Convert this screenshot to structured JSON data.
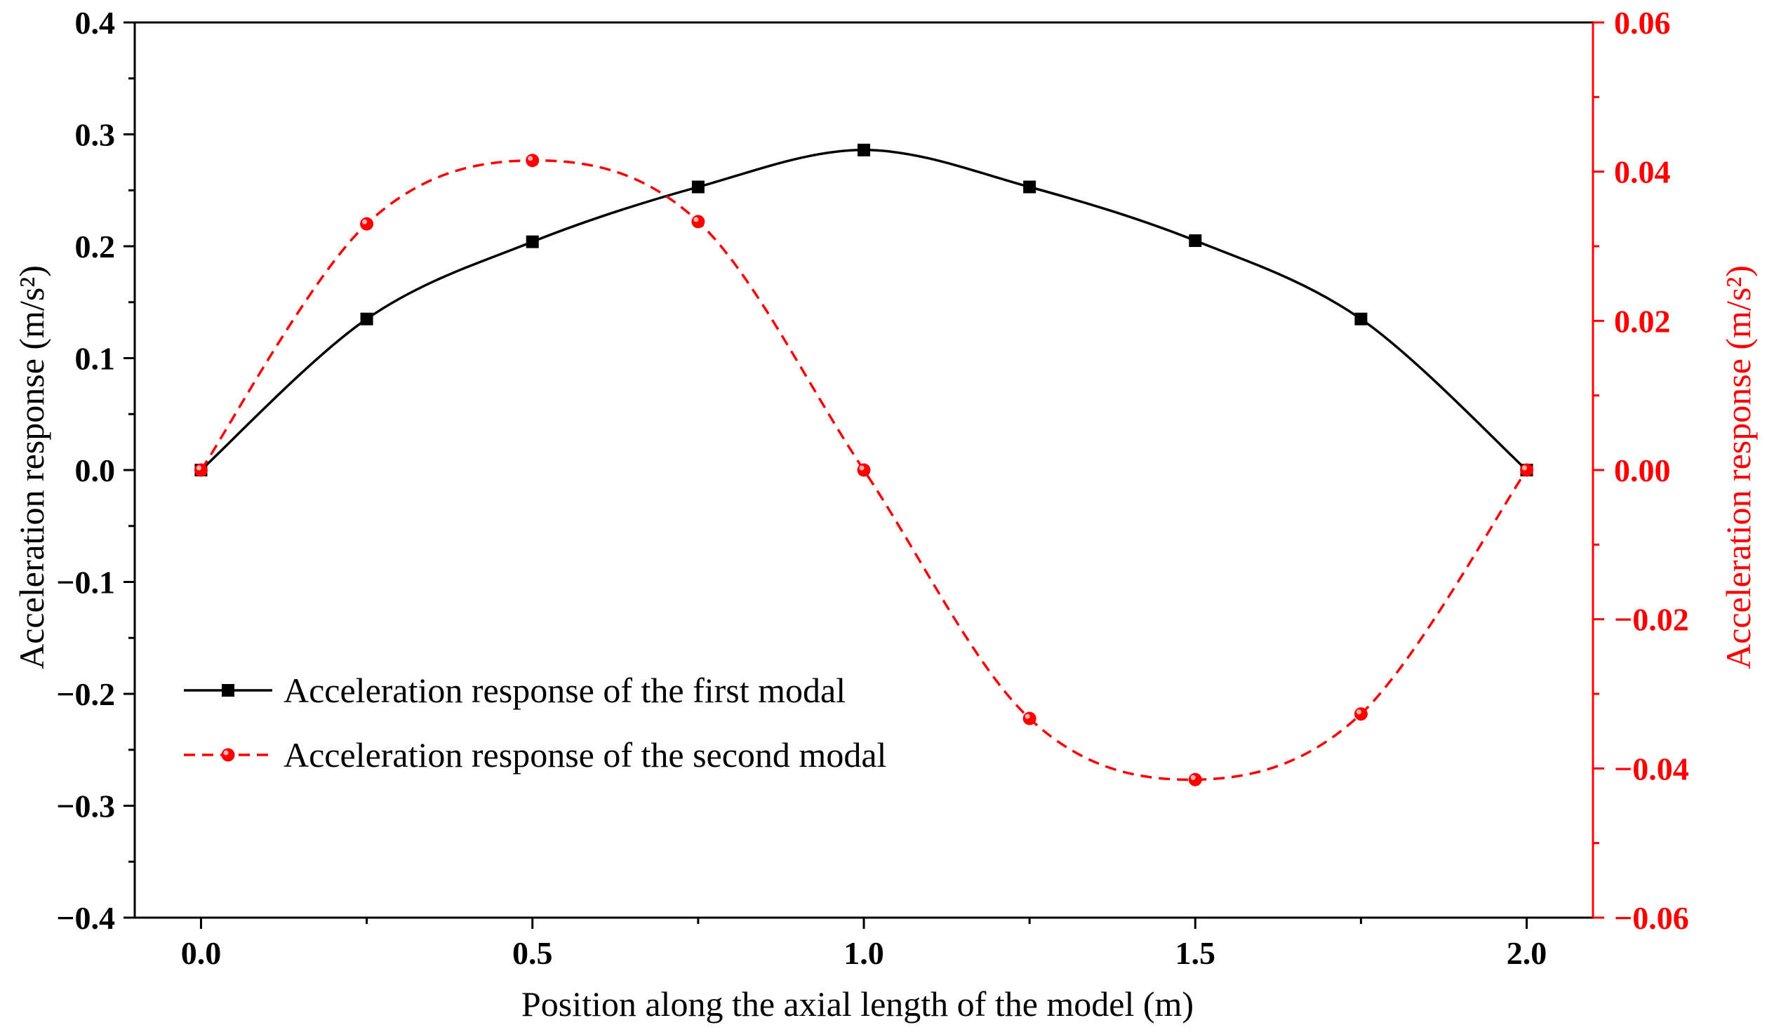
{
  "chart_data": {
    "type": "line",
    "title": "",
    "xlabel": "Position along the axial length of the model (m)",
    "ylabel_left": "Acceleration response (m/s²)",
    "ylabel_right": "Acceleration response (m/s²)",
    "x": [
      0.0,
      0.25,
      0.5,
      0.75,
      1.0,
      1.25,
      1.5,
      1.75,
      2.0
    ],
    "xlim": [
      -0.1,
      2.1
    ],
    "ylim_left": [
      -0.4,
      0.4
    ],
    "ylim_right": [
      -0.06,
      0.06
    ],
    "x_ticks": [
      0.0,
      0.5,
      1.0,
      1.5,
      2.0
    ],
    "x_tick_labels": [
      "0.0",
      "0.5",
      "1.0",
      "1.5",
      "2.0"
    ],
    "y_left_ticks": [
      0.4,
      0.3,
      0.2,
      0.1,
      0.0,
      -0.1,
      -0.2,
      -0.3,
      -0.4
    ],
    "y_left_tick_labels": [
      "0.4",
      "0.3",
      "0.2",
      "0.1",
      "0.0",
      "−0.1",
      "−0.2",
      "−0.3",
      "−0.4"
    ],
    "y_right_ticks": [
      0.06,
      0.04,
      0.02,
      0.0,
      -0.02,
      -0.04,
      -0.06
    ],
    "y_right_tick_labels": [
      "0.06",
      "0.04",
      "0.02",
      "0.00",
      "−0.02",
      "−0.04",
      "−0.06"
    ],
    "grid": false,
    "legend_position": "lower-left",
    "series": [
      {
        "name": "Acceleration response of the first modal",
        "axis": "left",
        "color": "#000000",
        "line_style": "solid",
        "marker": "square",
        "values": [
          0.0,
          0.135,
          0.204,
          0.253,
          0.286,
          0.253,
          0.205,
          0.135,
          0.0
        ]
      },
      {
        "name": "Acceleration response of the second modal",
        "axis": "right",
        "color": "#ff0000",
        "line_style": "dashed",
        "marker": "circle",
        "values": [
          0.0,
          0.033,
          0.0415,
          0.0333,
          0.0,
          -0.0333,
          -0.0415,
          -0.0327,
          0.0
        ]
      }
    ]
  }
}
